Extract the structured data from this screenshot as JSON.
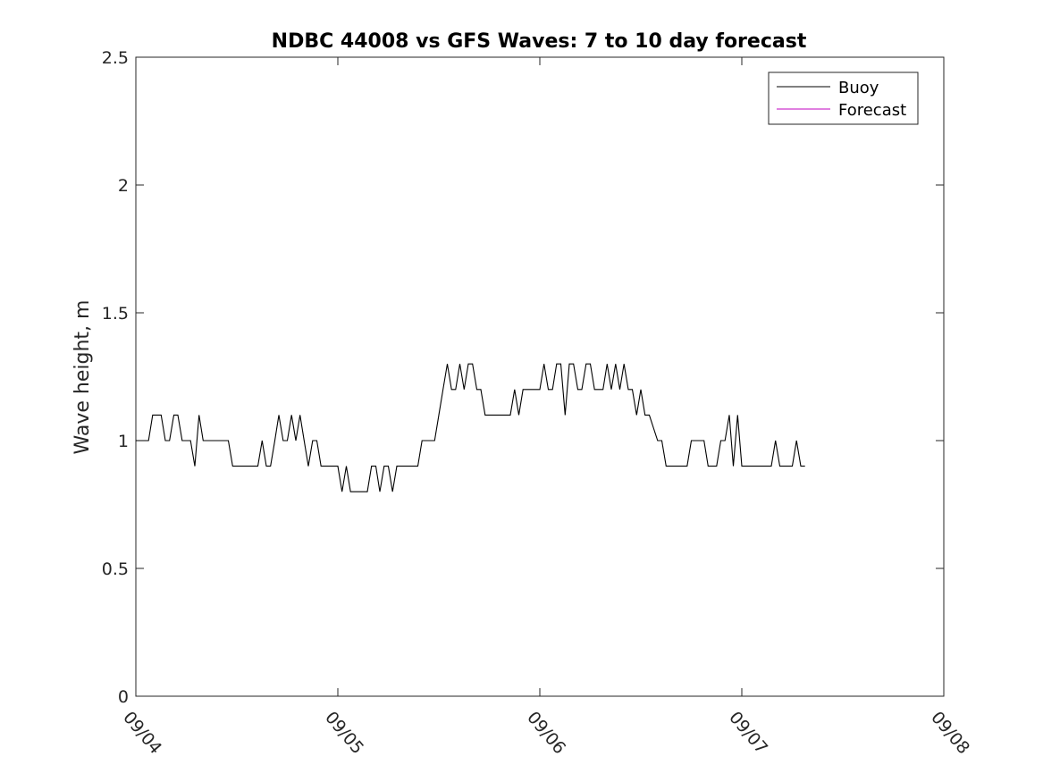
{
  "chart_data": {
    "type": "line",
    "title": "NDBC 44008 vs GFS Waves: 7 to 10 day forecast",
    "xlabel": "",
    "ylabel": "Wave height, m",
    "x_ticks": [
      "09/04",
      "09/05",
      "09/06",
      "09/07",
      "09/08"
    ],
    "y_ticks": [
      "0",
      "0.5",
      "1",
      "1.5",
      "2",
      "2.5"
    ],
    "xlim_days": [
      0,
      4
    ],
    "ylim": [
      0,
      2.5
    ],
    "grid": false,
    "legend_position": "top-right",
    "colors": {
      "buoy": "#000000",
      "forecast": "#c000c0",
      "axes": "#262626"
    },
    "series": [
      {
        "name": "Buoy",
        "color": "#000000",
        "points": [
          [
            0.0,
            1.0
          ],
          [
            0.063,
            1.0
          ],
          [
            0.083,
            1.1
          ],
          [
            0.125,
            1.1
          ],
          [
            0.146,
            1.0
          ],
          [
            0.167,
            1.0
          ],
          [
            0.188,
            1.1
          ],
          [
            0.208,
            1.1
          ],
          [
            0.229,
            1.0
          ],
          [
            0.271,
            1.0
          ],
          [
            0.292,
            0.9
          ],
          [
            0.313,
            1.1
          ],
          [
            0.333,
            1.0
          ],
          [
            0.458,
            1.0
          ],
          [
            0.479,
            0.9
          ],
          [
            0.604,
            0.9
          ],
          [
            0.625,
            1.0
          ],
          [
            0.646,
            0.9
          ],
          [
            0.667,
            0.9
          ],
          [
            0.688,
            1.0
          ],
          [
            0.708,
            1.1
          ],
          [
            0.729,
            1.0
          ],
          [
            0.75,
            1.0
          ],
          [
            0.771,
            1.1
          ],
          [
            0.792,
            1.0
          ],
          [
            0.813,
            1.1
          ],
          [
            0.833,
            1.0
          ],
          [
            0.854,
            0.9
          ],
          [
            0.875,
            1.0
          ],
          [
            0.896,
            1.0
          ],
          [
            0.917,
            0.9
          ],
          [
            1.0,
            0.9
          ],
          [
            1.021,
            0.8
          ],
          [
            1.042,
            0.9
          ],
          [
            1.063,
            0.8
          ],
          [
            1.146,
            0.8
          ],
          [
            1.167,
            0.9
          ],
          [
            1.188,
            0.9
          ],
          [
            1.208,
            0.8
          ],
          [
            1.229,
            0.9
          ],
          [
            1.25,
            0.9
          ],
          [
            1.271,
            0.8
          ],
          [
            1.292,
            0.9
          ],
          [
            1.396,
            0.9
          ],
          [
            1.417,
            1.0
          ],
          [
            1.479,
            1.0
          ],
          [
            1.5,
            1.1
          ],
          [
            1.521,
            1.2
          ],
          [
            1.542,
            1.3
          ],
          [
            1.563,
            1.2
          ],
          [
            1.583,
            1.2
          ],
          [
            1.604,
            1.3
          ],
          [
            1.625,
            1.2
          ],
          [
            1.646,
            1.3
          ],
          [
            1.667,
            1.3
          ],
          [
            1.688,
            1.2
          ],
          [
            1.708,
            1.2
          ],
          [
            1.729,
            1.1
          ],
          [
            1.854,
            1.1
          ],
          [
            1.875,
            1.2
          ],
          [
            1.896,
            1.1
          ],
          [
            1.917,
            1.2
          ],
          [
            2.0,
            1.2
          ],
          [
            2.021,
            1.3
          ],
          [
            2.042,
            1.2
          ],
          [
            2.063,
            1.2
          ],
          [
            2.083,
            1.3
          ],
          [
            2.104,
            1.3
          ],
          [
            2.125,
            1.1
          ],
          [
            2.146,
            1.3
          ],
          [
            2.167,
            1.3
          ],
          [
            2.188,
            1.2
          ],
          [
            2.208,
            1.2
          ],
          [
            2.229,
            1.3
          ],
          [
            2.25,
            1.3
          ],
          [
            2.271,
            1.2
          ],
          [
            2.313,
            1.2
          ],
          [
            2.333,
            1.3
          ],
          [
            2.354,
            1.2
          ],
          [
            2.375,
            1.3
          ],
          [
            2.396,
            1.2
          ],
          [
            2.417,
            1.3
          ],
          [
            2.438,
            1.2
          ],
          [
            2.458,
            1.2
          ],
          [
            2.479,
            1.1
          ],
          [
            2.5,
            1.2
          ],
          [
            2.521,
            1.1
          ],
          [
            2.542,
            1.1
          ],
          [
            2.583,
            1.0
          ],
          [
            2.604,
            1.0
          ],
          [
            2.625,
            0.9
          ],
          [
            2.729,
            0.9
          ],
          [
            2.75,
            1.0
          ],
          [
            2.813,
            1.0
          ],
          [
            2.833,
            0.9
          ],
          [
            2.875,
            0.9
          ],
          [
            2.896,
            1.0
          ],
          [
            2.917,
            1.0
          ],
          [
            2.938,
            1.1
          ],
          [
            2.958,
            0.9
          ],
          [
            2.979,
            1.1
          ],
          [
            3.0,
            0.9
          ],
          [
            3.146,
            0.9
          ],
          [
            3.167,
            1.0
          ],
          [
            3.188,
            0.9
          ],
          [
            3.25,
            0.9
          ],
          [
            3.271,
            1.0
          ],
          [
            3.292,
            0.9
          ],
          [
            3.313,
            0.9
          ]
        ]
      },
      {
        "name": "Forecast",
        "color": "#c000c0",
        "points": []
      }
    ]
  }
}
